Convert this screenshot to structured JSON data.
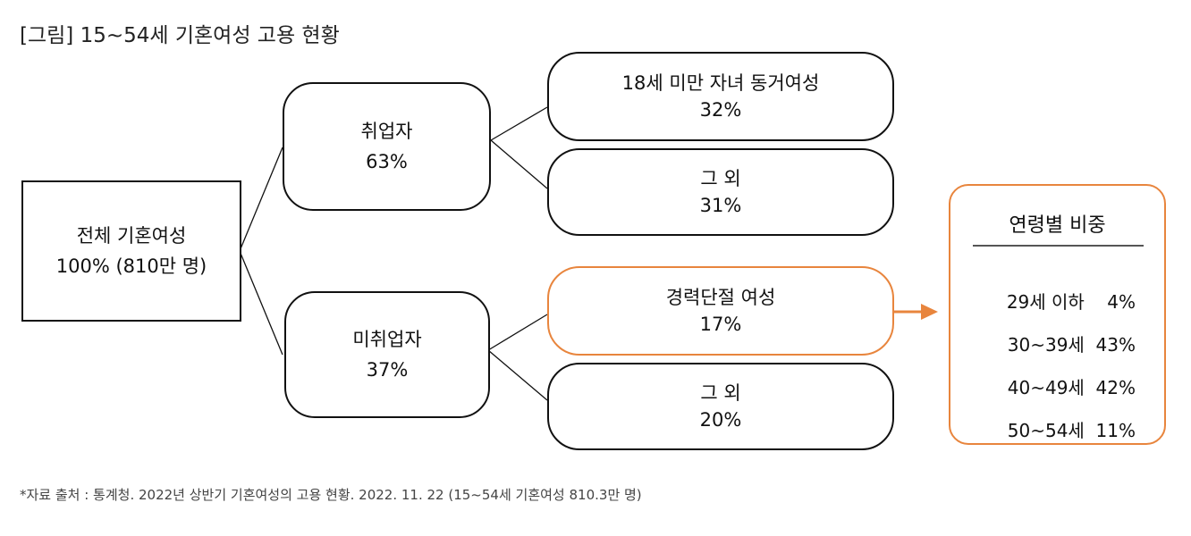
{
  "title": "[그림] 15~54세 기혼여성 고용 현황",
  "root": {
    "label": "전체 기혼여성",
    "value": "100% (810만 명)"
  },
  "employed": {
    "label": "취업자",
    "value": "63%",
    "children": [
      {
        "label": "18세 미만 자녀 동거여성",
        "value": "32%"
      },
      {
        "label": "그 외",
        "value": "31%"
      }
    ]
  },
  "unemployed": {
    "label": "미취업자",
    "value": "37%",
    "children": [
      {
        "label": "경력단절 여성",
        "value": "17%"
      },
      {
        "label": "그 외",
        "value": "20%"
      }
    ]
  },
  "age_breakdown": {
    "title": "연령별 비중",
    "rows": [
      {
        "age": "29세 이하",
        "share": "4%"
      },
      {
        "age": "30~39세",
        "share": "43%"
      },
      {
        "age": "40~49세",
        "share": "42%"
      },
      {
        "age": "50~54세",
        "share": "11%"
      }
    ]
  },
  "footnote": "*자료 출처 : 통계청. 2022년 상반기 기혼여성의 고용 현황. 2022. 11. 22 (15~54세 기혼여성 810.3만 명)",
  "colors": {
    "highlight": "#e8853d",
    "line": "#111111"
  }
}
